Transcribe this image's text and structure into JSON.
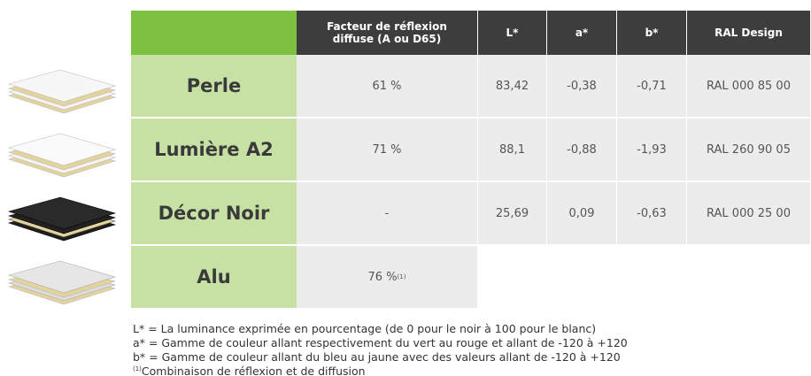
{
  "table": {
    "columns": [
      "Facteur de réflexion diffuse (A ou D65)",
      "L*",
      "a*",
      "b*",
      "RAL Design"
    ],
    "rows": [
      {
        "name": "Perle",
        "cells": [
          "61 %",
          "83,42",
          "-0,38",
          "-0,71",
          "RAL 000 85 00"
        ]
      },
      {
        "name": "Lumière A2",
        "cells": [
          "71 %",
          "88,1",
          "-0,88",
          "-1,93",
          "RAL 260 90 05"
        ]
      },
      {
        "name": "Décor Noir",
        "cells": [
          "-",
          "25,69",
          "0,09",
          "-0,63",
          "RAL 000 25 00"
        ]
      },
      {
        "name": "Alu",
        "cells": [
          "76 %"
        ],
        "note": "(1)"
      }
    ]
  },
  "footnotes": [
    "L* = La luminance exprimée en pourcentage (de 0 pour le noir à 100 pour le blanc)",
    "a* = Gamme de couleur allant respectivement du vert au rouge et allant de -120 à +120",
    "b* = Gamme de couleur allant du bleu au jaune avec des valeurs allant de -120 à +120",
    {
      "marker": "(1)",
      "text": "Combinaison de réflexion et de diffusion"
    }
  ]
}
